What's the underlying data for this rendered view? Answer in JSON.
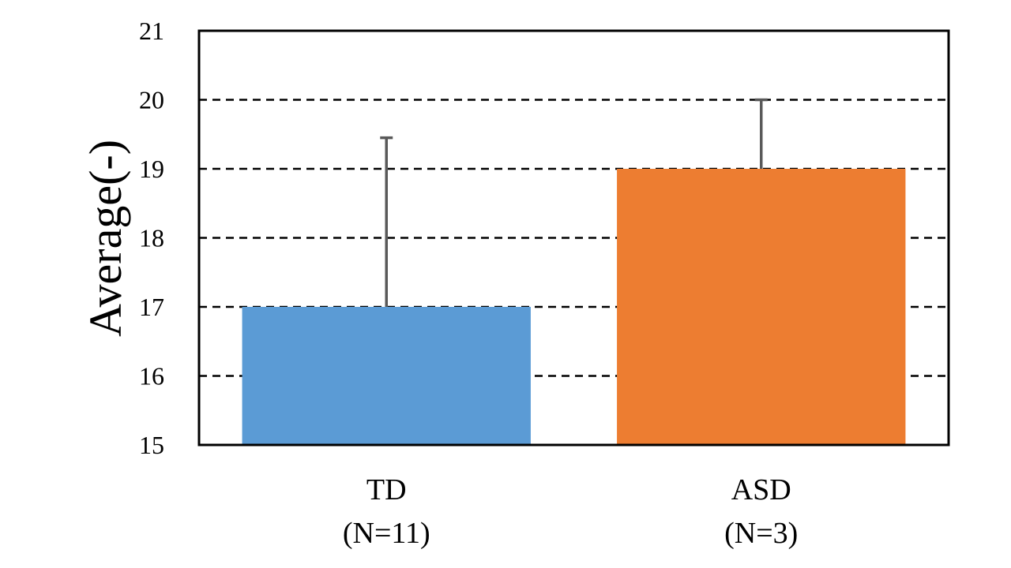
{
  "chart_data": {
    "type": "bar",
    "title": "",
    "ylabel": "Average(-)",
    "xlabel": "",
    "ylim": [
      15,
      21
    ],
    "yticks": [
      15,
      16,
      17,
      18,
      19,
      20,
      21
    ],
    "grid": true,
    "categories": [
      {
        "name": "TD",
        "sublabel": "(N=11)"
      },
      {
        "name": "ASD",
        "sublabel": "(N=3)"
      }
    ],
    "values": [
      17,
      19
    ],
    "error_upper": [
      2.45,
      1.0
    ],
    "colors": [
      "#5b9bd5",
      "#ed7d31"
    ],
    "error_bar_color": "#595959"
  }
}
